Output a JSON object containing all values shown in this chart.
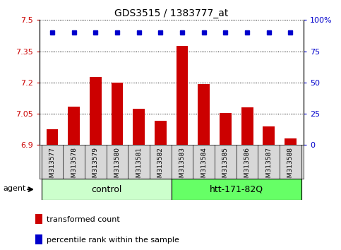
{
  "title": "GDS3515 / 1383777_at",
  "samples": [
    "GSM313577",
    "GSM313578",
    "GSM313579",
    "GSM313580",
    "GSM313581",
    "GSM313582",
    "GSM313583",
    "GSM313584",
    "GSM313585",
    "GSM313586",
    "GSM313587",
    "GSM313588"
  ],
  "bar_values": [
    6.975,
    7.085,
    7.225,
    7.2,
    7.075,
    7.015,
    7.375,
    7.193,
    7.053,
    7.08,
    6.99,
    6.93
  ],
  "percentile_values": [
    90,
    90,
    90,
    90,
    90,
    90,
    90,
    90,
    90,
    90,
    90,
    90
  ],
  "bar_color": "#cc0000",
  "percentile_color": "#0000cc",
  "ylim_left": [
    6.9,
    7.5
  ],
  "yticks_left": [
    6.9,
    7.05,
    7.2,
    7.35,
    7.5
  ],
  "ytick_labels_left": [
    "6.9",
    "7.05",
    "7.2",
    "7.35",
    "7.5"
  ],
  "ylim_right": [
    0,
    100
  ],
  "yticks_right": [
    0,
    25,
    50,
    75,
    100
  ],
  "ytick_labels_right": [
    "0",
    "25",
    "50",
    "75",
    "100%"
  ],
  "control_label": "control",
  "htt_label": "htt-171-82Q",
  "agent_label": "agent",
  "legend_bar_label": "transformed count",
  "legend_pct_label": "percentile rank within the sample",
  "control_color": "#ccffcc",
  "htt_color": "#66ff66",
  "bar_width": 0.55,
  "xtick_bg_color": "#d8d8d8",
  "title_fontsize": 10,
  "tick_fontsize": 8,
  "label_fontsize": 8
}
